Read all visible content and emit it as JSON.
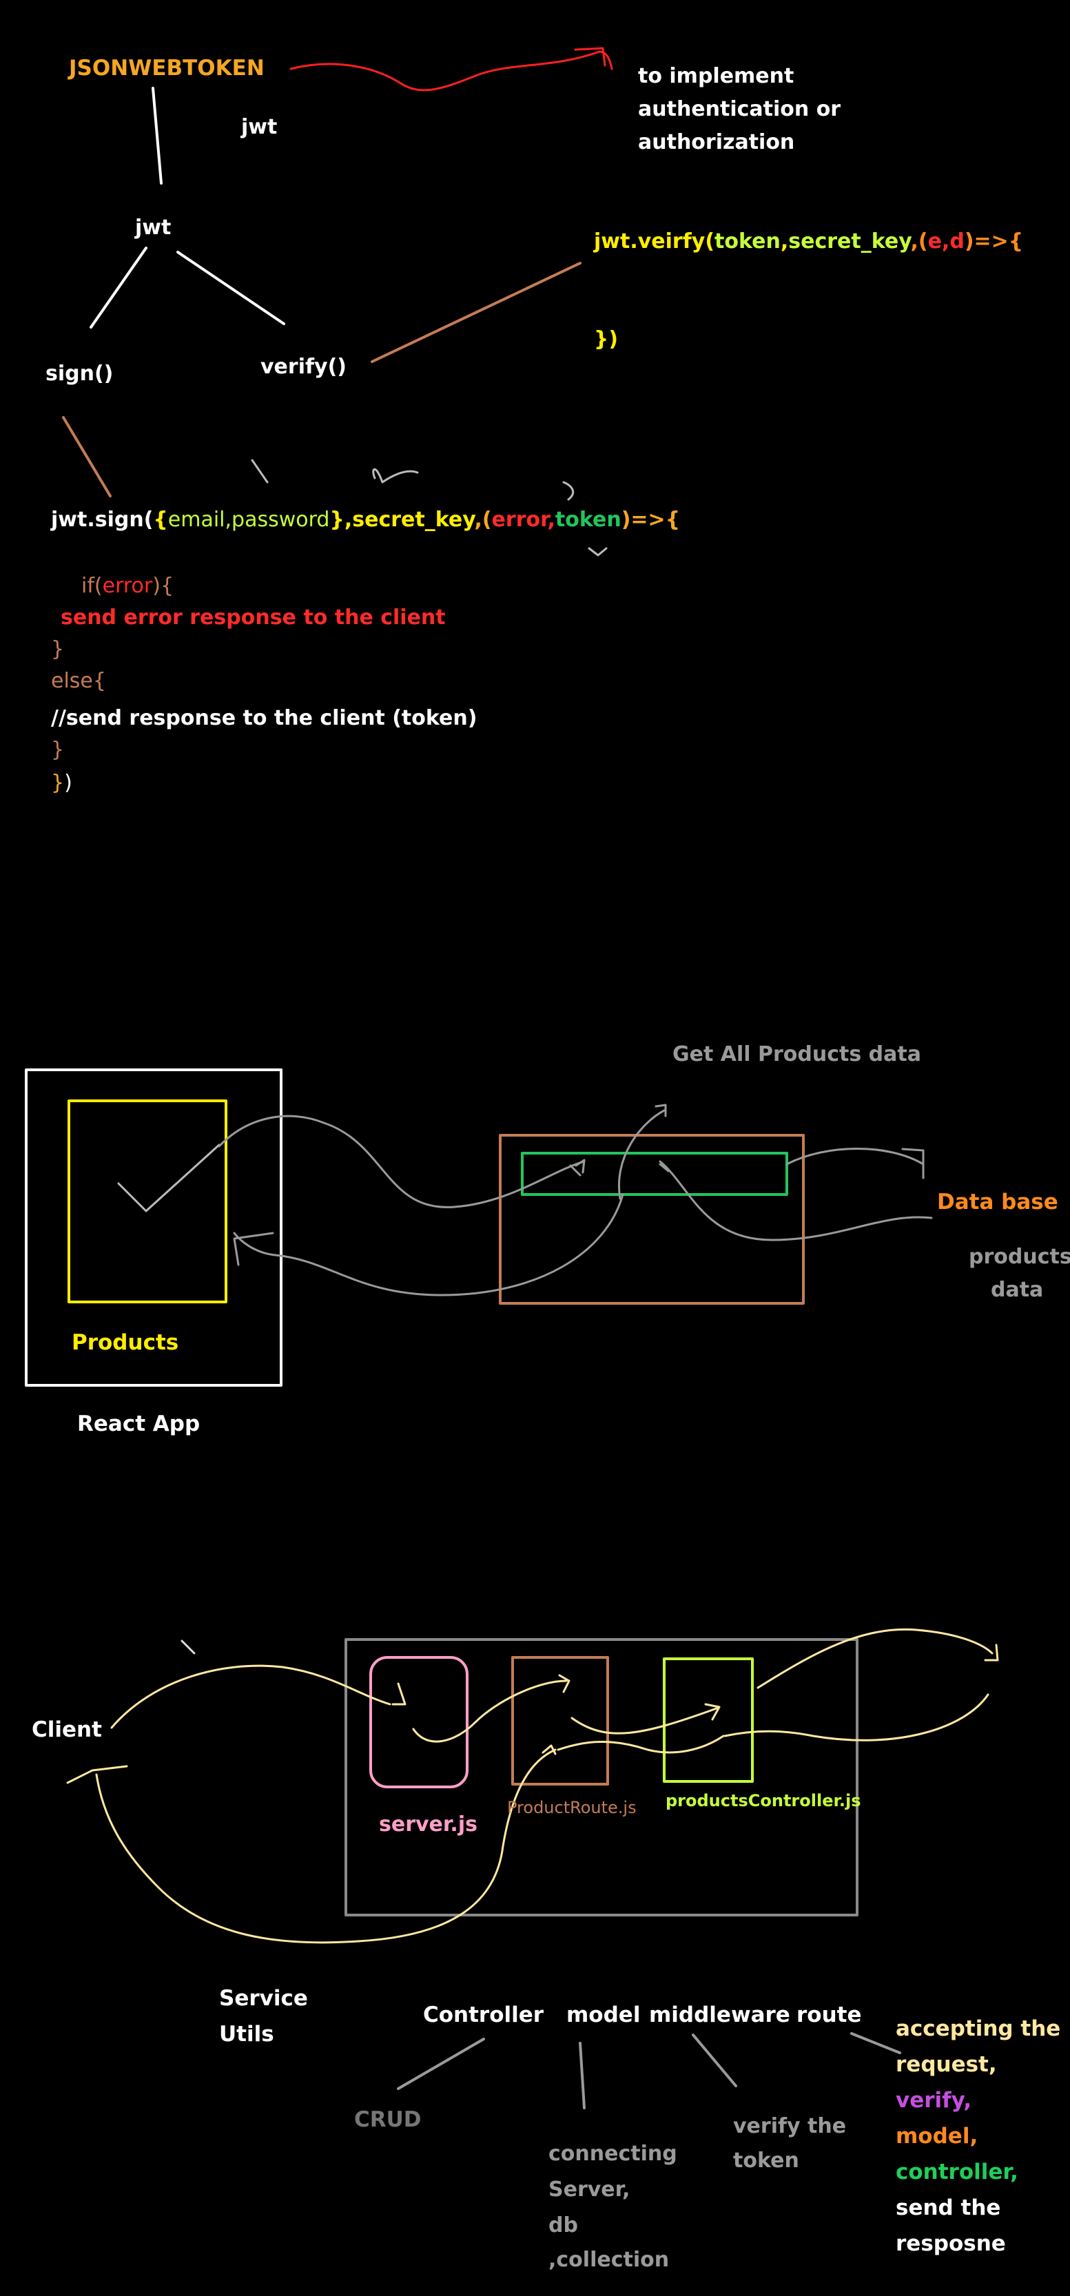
{
  "colors": {
    "white": "#ffffff",
    "orange": "#f5a623",
    "red": "#ff2b2b",
    "yellow": "#ffee00",
    "lime": "#c6ff3a",
    "green": "#22c55e",
    "brown": "#c47c55",
    "gray": "#9a9a9a",
    "pink": "#ff9fc8",
    "cream": "#ffe8a0",
    "purple": "#c44fe0",
    "orange2": "#ff8a1e",
    "green2": "#1fcf5a"
  },
  "section1": {
    "title": "JSONWEBTOKEN",
    "abbr": "jwt",
    "note": [
      "to implement",
      "authentication or",
      "authorization"
    ],
    "root": "jwt",
    "sign": "sign()",
    "verify": "verify()",
    "verify_code": {
      "l1_a": "jwt.veirfy(",
      "l1_b": "token",
      "l1_c": ",",
      "l1_d": "secret_key",
      "l1_e": ",(",
      "l1_f": "e",
      "l1_g": ",",
      "l1_h": "d",
      "l1_i": ")=>{",
      "l2": "})"
    },
    "sign_code": {
      "l1_a": "jwt.sign(",
      "l1_b": "{",
      "l1_c": "email,password",
      "l1_d": "}",
      "l1_e": ",",
      "l1_f": "secret_key",
      "l1_g": ",(",
      "l1_h": "error",
      "l1_i": ",",
      "l1_j": "token",
      "l1_k": ")=>{",
      "l2_a": "if(",
      "l2_b": "error",
      "l2_c": "){",
      "l3": "send error response to the client",
      "l4": "}",
      "l5": "else{",
      "l6": "//send response to the client (token)",
      "l7": "}",
      "l8_a": "}",
      "l8_b": ")"
    }
  },
  "section2": {
    "get_label": "Get All Products data",
    "products": "Products",
    "react_app": "React App",
    "database": "Data base",
    "db_note": [
      "products",
      "data"
    ]
  },
  "section3": {
    "client": "Client",
    "server": "server.js",
    "route": "ProductRoute.js",
    "controller": "productsController.js",
    "service": "Service",
    "utils": "Utils",
    "layers": {
      "controller": "Controller",
      "model": "model",
      "middleware": "middleware",
      "route": "route"
    },
    "crud": "CRUD",
    "model_note": [
      "connecting",
      "Server,",
      "db",
      ",collection"
    ],
    "middleware_note": [
      "verify the",
      "token"
    ],
    "route_note": {
      "l1": "accepting the",
      "l2": "request,",
      "l3": "verify,",
      "l4": "model,",
      "l5": "controller,",
      "l6": "send the",
      "l7": "resposne"
    }
  }
}
